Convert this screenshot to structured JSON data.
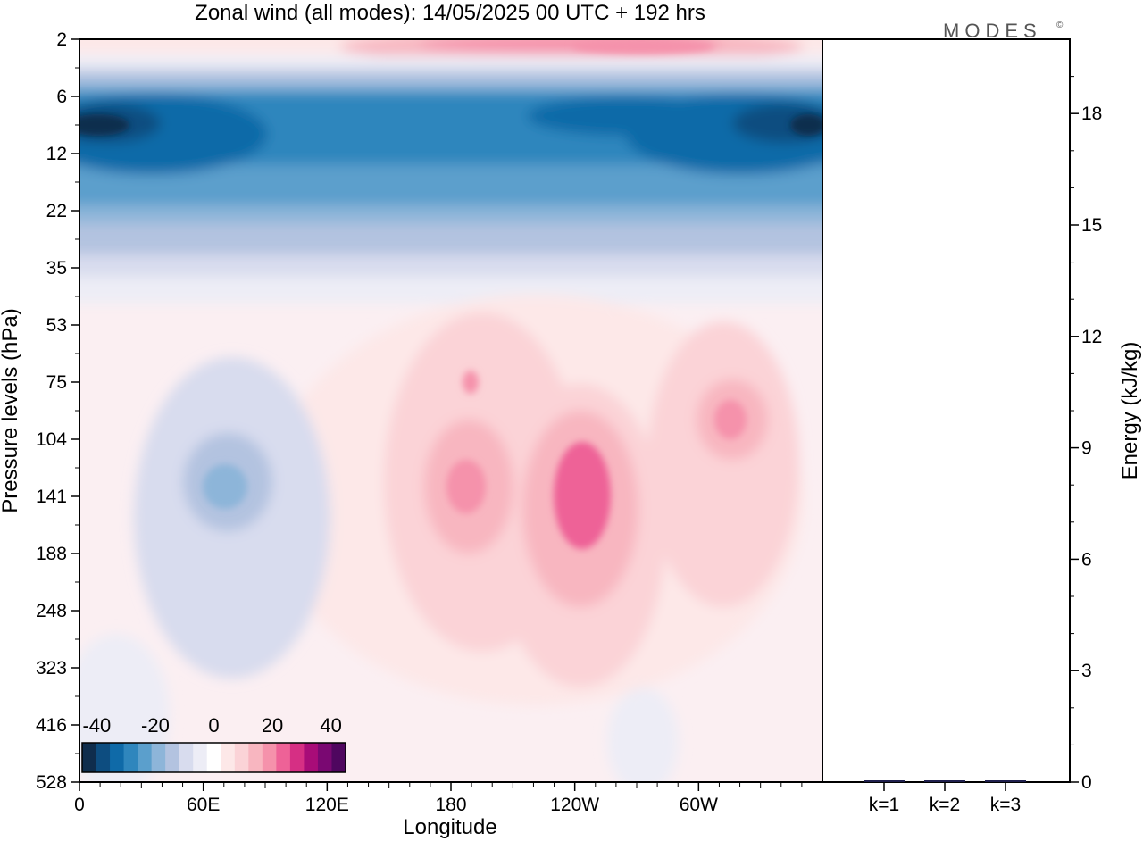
{
  "title": "Zonal wind (all modes):  14/05/2025  00 UTC  + 192 hrs",
  "brand": "MODES",
  "brand_mark": "©",
  "chart_data": [
    {
      "type": "heatmap",
      "title": "Zonal wind (all modes):  14/05/2025  00 UTC  + 192 hrs",
      "xlabel": "Longitude",
      "ylabel": "Pressure levels (hPa)",
      "x_ticks": [
        "0",
        "60E",
        "120E",
        "180",
        "120W",
        "60W"
      ],
      "x_tick_values": [
        0,
        60,
        120,
        180,
        240,
        300
      ],
      "xlim": [
        0,
        360
      ],
      "y_ticks": [
        "2",
        "6",
        "12",
        "22",
        "35",
        "53",
        "75",
        "104",
        "141",
        "188",
        "248",
        "323",
        "416",
        "528"
      ],
      "y_scale": "categorical pressure levels (top = 2 hPa, bottom = 528 hPa)",
      "colorbar": {
        "labels": [
          "-40",
          "-20",
          "0",
          "20",
          "40"
        ],
        "label_values": [
          -40,
          -20,
          0,
          20,
          40
        ],
        "range": [
          -45,
          45
        ],
        "colors": [
          "#0f2d4d",
          "#0d4d80",
          "#0f6aa8",
          "#2f86bd",
          "#5b9fcc",
          "#8db5d9",
          "#b3c3e0",
          "#d8dcee",
          "#ededf6",
          "#ffffff",
          "#fde8e8",
          "#fbd3d7",
          "#f8b6c0",
          "#f592ab",
          "#ee6297",
          "#d62f84",
          "#a80c78",
          "#7a0872",
          "#4f065f"
        ]
      },
      "features": [
        {
          "label": "easterly jet",
          "lon_range": [
            0,
            360
          ],
          "levels": [
            "6",
            "22"
          ],
          "min_value": -42
        },
        {
          "label": "westerly maximum",
          "lon": 245,
          "level": "141",
          "value": 27
        },
        {
          "label": "westerly maximum",
          "lon": 188,
          "level": "141",
          "value": 18
        },
        {
          "label": "westerly maximum",
          "lon": 310,
          "level": "104",
          "value": 16
        },
        {
          "label": "easterly minimum",
          "lon": 65,
          "level": "141",
          "value": -14
        },
        {
          "label": "stratospheric westerlies",
          "lon": 200,
          "level": "2",
          "value": 14
        }
      ]
    },
    {
      "type": "bar",
      "categories": [
        "k=1",
        "k=2",
        "k=3"
      ],
      "values": [
        0.02,
        0.01,
        0.01
      ],
      "ylabel": "Energy (kJ/kg)",
      "ylim": [
        0,
        20
      ],
      "y_ticks": [
        "0",
        "3",
        "6",
        "9",
        "12",
        "15",
        "18"
      ],
      "y_tick_values": [
        0,
        3,
        6,
        9,
        12,
        15,
        18
      ],
      "bar_color": "#1f1f4d"
    }
  ]
}
